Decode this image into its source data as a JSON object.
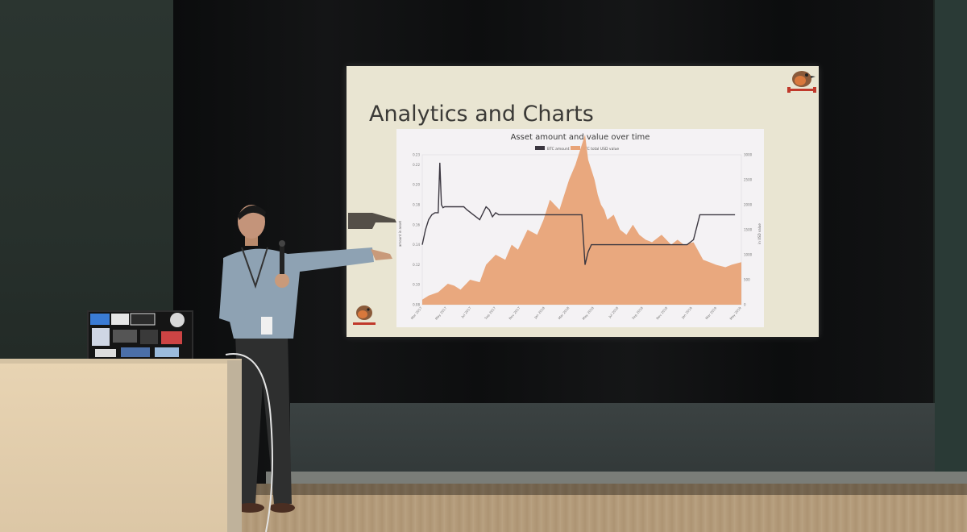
{
  "slide": {
    "title": "Analytics and Charts"
  },
  "chart_data": {
    "type": "area",
    "title": "Asset amount and value over time",
    "legend": [
      "BTC amount",
      "BTC total USD value"
    ],
    "legend_position": "top-center",
    "ylabel_left": "amount in asset",
    "ylabel_right": "in USD value",
    "ylim_left": [
      0.08,
      0.23
    ],
    "yticks_left": [
      "0.08",
      "0.10",
      "0.12",
      "0.14",
      "0.16",
      "0.18",
      "0.20",
      "0.22",
      "0.23"
    ],
    "ylim_right": [
      0,
      3000
    ],
    "yticks_right": [
      "0",
      "500",
      "1000",
      "1500",
      "2000",
      "2500",
      "3000"
    ],
    "xticks": [
      "Mar 2017",
      "May 2017",
      "Jul 2017",
      "Sep 2017",
      "Nov 2017",
      "Jan 2018",
      "Mar 2018",
      "May 2018",
      "Jul 2018",
      "Sep 2018",
      "Nov 2018",
      "Jan 2019",
      "Mar 2019",
      "May 2019"
    ],
    "series": [
      {
        "name": "BTC total USD value",
        "color": "#e8a377",
        "x": [
          0,
          2,
          5,
          8,
          10,
          12,
          15,
          18,
          20,
          23,
          26,
          28,
          30,
          33,
          36,
          38,
          40,
          43,
          46,
          48,
          49,
          50,
          51,
          52,
          53,
          54,
          55,
          56,
          57,
          58,
          60,
          62,
          64,
          66,
          68,
          70,
          72,
          75,
          78,
          80,
          82,
          85,
          88,
          90,
          92,
          95,
          97,
          100
        ],
        "values": [
          100,
          180,
          250,
          420,
          380,
          300,
          500,
          450,
          800,
          1000,
          900,
          1200,
          1100,
          1500,
          1400,
          1700,
          2100,
          1900,
          2500,
          2800,
          3000,
          3200,
          3400,
          2900,
          2700,
          2500,
          2200,
          2000,
          1900,
          1700,
          1800,
          1500,
          1400,
          1600,
          1400,
          1300,
          1250,
          1400,
          1200,
          1300,
          1200,
          1250,
          900,
          850,
          800,
          750,
          800,
          850
        ]
      },
      {
        "name": "BTC amount",
        "color": "#3b3740",
        "x": [
          0,
          1,
          2,
          3,
          4,
          5,
          5.5,
          6,
          6.5,
          7,
          8,
          10,
          12,
          13,
          14,
          16,
          18,
          20,
          21,
          22,
          23,
          24,
          25,
          27,
          29,
          31,
          33,
          35,
          37,
          39,
          41,
          43,
          45,
          47,
          49,
          50,
          51,
          52,
          53,
          55,
          57,
          59,
          61,
          63,
          65,
          67,
          69,
          71,
          73,
          75,
          77,
          79,
          81,
          83,
          85,
          87,
          89,
          91,
          93,
          95,
          98
        ],
        "values": [
          0.14,
          0.155,
          0.165,
          0.17,
          0.172,
          0.172,
          0.222,
          0.18,
          0.177,
          0.178,
          0.178,
          0.178,
          0.178,
          0.178,
          0.175,
          0.17,
          0.165,
          0.178,
          0.175,
          0.168,
          0.172,
          0.17,
          0.17,
          0.17,
          0.17,
          0.17,
          0.17,
          0.17,
          0.17,
          0.17,
          0.17,
          0.17,
          0.17,
          0.17,
          0.17,
          0.17,
          0.12,
          0.133,
          0.14,
          0.14,
          0.14,
          0.14,
          0.14,
          0.14,
          0.14,
          0.14,
          0.14,
          0.14,
          0.14,
          0.14,
          0.14,
          0.14,
          0.14,
          0.14,
          0.145,
          0.17,
          0.17,
          0.17,
          0.17,
          0.17,
          0.17
        ]
      }
    ]
  }
}
